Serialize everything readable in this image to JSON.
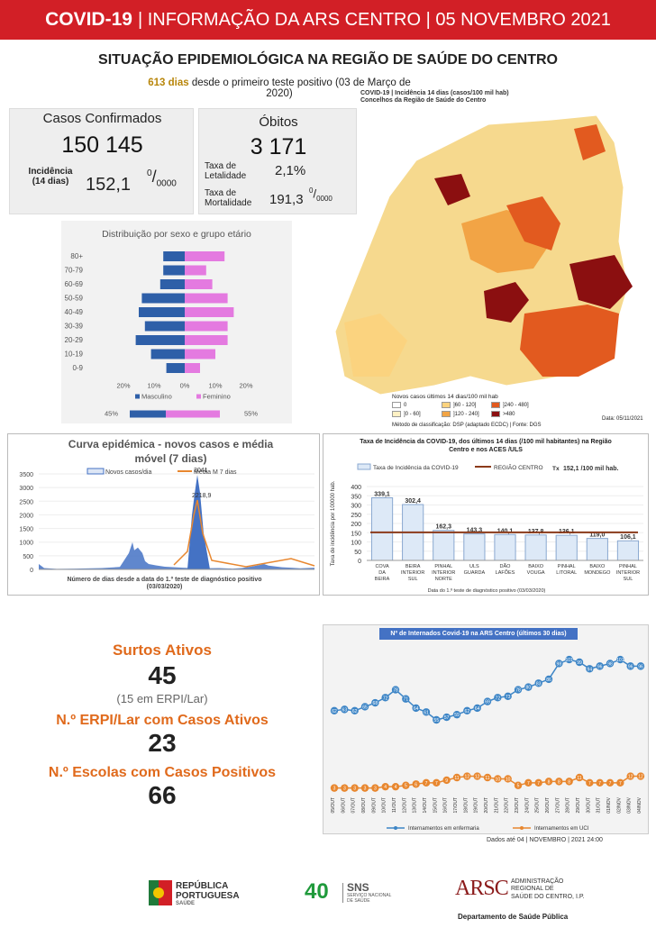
{
  "header": {
    "brand": "COVID-19",
    "rest": "| INFORMAÇÃO DA ARS CENTRO | 05 NOVEMBRO 2021"
  },
  "title": "SITUAÇÃO EPIDEMIOLÓGICA NA REGIÃO DE SAÚDE DO CENTRO",
  "subtitle": {
    "days": "613 dias",
    "text": "desde o primeiro teste positivo (03 de Março de 2020)"
  },
  "casos": {
    "label": "Casos Confirmados",
    "value": "150 145",
    "inc_label": "Incidência",
    "inc_sub": "(14 dias)",
    "inc_value": "152,1",
    "inc_unit": "0/0000"
  },
  "obitos": {
    "label": "Óbitos",
    "value": "3 171",
    "let_label": "Taxa de Letalidade",
    "let_value": "2,1%",
    "mort_label": "Taxa de Mortalidade",
    "mort_value": "191,3",
    "mort_unit": "0/0000"
  },
  "map": {
    "title": "COVID-19 | Incidência 14 dias (casos/100 mil hab)",
    "subtitle": "Concelhos da Região de Saúde do Centro",
    "legend_title": "Novos casos últimos 14 dias/100 mil hab",
    "legend": [
      {
        "label": "0",
        "color": "#ffffff"
      },
      {
        "label": "]0 - 60]",
        "color": "#fff1c4"
      },
      {
        "label": "]60 - 120]",
        "color": "#fbd37f"
      },
      {
        "label": "]120 - 240]",
        "color": "#f2a445"
      },
      {
        "label": "]240 - 480]",
        "color": "#e25a1f"
      },
      {
        "label": ">480",
        "color": "#8b0f10"
      }
    ],
    "source": "Método de classificação: DSP (adaptado ECDC) | Fonte: DGS",
    "date": "Data: 05/11/2021"
  },
  "pyramid": {
    "title": "Distribuição por sexo e grupo etário",
    "groups": [
      "80+",
      "70-79",
      "60-69",
      "50-59",
      "40-49",
      "30-39",
      "20-29",
      "10-19",
      "0-9"
    ],
    "male": [
      7,
      7,
      8,
      14,
      15,
      13,
      16,
      11,
      6
    ],
    "female": [
      13,
      7,
      9,
      14,
      16,
      14,
      14,
      10,
      5
    ],
    "ticks": [
      "20%",
      "10%",
      "0%",
      "10%",
      "20%"
    ],
    "legend_m": "Masculino",
    "legend_f": "Feminino",
    "pct_m": "45%",
    "pct_f": "55%",
    "colors": {
      "male": "#2e5fa8",
      "female": "#e47ae0"
    }
  },
  "curve": {
    "title": "Curva epidémica - novos casos e média móvel (7 dias)",
    "legend_a": "Novos casos/dia",
    "legend_b": "Média M 7 dias",
    "peak": "3041",
    "peak_avg": "2218,9",
    "yticks": [
      "3500",
      "3000",
      "2500",
      "2000",
      "1500",
      "1000",
      "500",
      "0"
    ],
    "xlabel": "Número de dias desde a data do 1.º teste de diagnóstico positivo",
    "xlabel2": "(03/03/2020)"
  },
  "chart_data": [
    {
      "type": "bar",
      "title": "Taxa de Incidência da COVID-19, dos últimos 14 dias (/100 mil habitantes) na Região Centro e nos ACES /ULS",
      "categories": [
        "COVA DA BEIRA",
        "BEIRA INTERIOR SUL",
        "PINHAL INTERIOR NORTE",
        "ULS GUARDA",
        "DÃO LAFÕES",
        "BAIXO VOUGA",
        "PINHAL LITORAL",
        "BAIXO MONDEGO",
        "PINHAL INTERIOR SUL"
      ],
      "values": [
        339.1,
        302.4,
        162.3,
        143.3,
        140.1,
        137.8,
        136.1,
        119.0,
        106.1
      ],
      "labels": [
        "339,1",
        "302,4",
        "162,3",
        "143,3",
        "140,1",
        "137,8",
        "136,1",
        "119,0",
        "106,1"
      ],
      "region_line": 152.1,
      "ylim": [
        0,
        400
      ],
      "yticks": [
        "400",
        "350",
        "300",
        "250",
        "200",
        "150",
        "100",
        "50",
        "0"
      ],
      "ylabel": "Taxa de incidência por 100000 hab.",
      "legend_bar": "Taxa de Incidência da COVID-19",
      "legend_line": "REGIÃO CENTRO",
      "legend_tx": "Tx",
      "legend_tx_val": "152,1 /100 mil hab.",
      "xnote": "Data do 1.º teste de diagnóstico positivo (03/03/2020)"
    },
    {
      "type": "line",
      "title": "Nº de Internados Covid-19 na ARS Centro (últimos 30 dias)",
      "x": [
        "05/OUT",
        "06/OUT",
        "07/OUT",
        "08/OUT",
        "09/OUT",
        "10/OUT",
        "11/OUT",
        "12/OUT",
        "13/OUT",
        "14/OUT",
        "15/OUT",
        "16/OUT",
        "17/OUT",
        "18/OUT",
        "19/OUT",
        "20/OUT",
        "21/OUT",
        "22/OUT",
        "23/OUT",
        "24/OUT",
        "25/OUT",
        "26/OUT",
        "27/OUT",
        "28/OUT",
        "29/OUT",
        "30/OUT",
        "31/OUT",
        "01/NOV",
        "02/NOV",
        "03/NOV",
        "04/NOV"
      ],
      "series": [
        {
          "name": "Internamentos em enfermaria",
          "values": [
            62,
            63,
            62,
            65,
            68,
            72,
            78,
            71,
            64,
            61,
            55,
            57,
            59,
            62,
            64,
            69,
            72,
            73,
            78,
            80,
            83,
            86,
            98,
            101,
            99,
            94,
            96,
            98,
            101,
            96,
            96
          ],
          "color": "#3d85c6"
        },
        {
          "name": "Internamentos em UCI",
          "values": [
            3,
            3,
            3,
            3,
            3,
            4,
            4,
            5,
            6,
            7,
            7,
            9,
            11,
            12,
            12,
            11,
            10,
            10,
            5,
            7,
            7,
            8,
            8,
            8,
            11,
            7,
            7,
            7,
            7,
            12,
            12
          ],
          "color": "#e8872f"
        }
      ],
      "ylim": [
        0,
        110
      ]
    }
  ],
  "surtos": {
    "label": "Surtos Ativos",
    "value": "45",
    "note": "(15 em ERPI/Lar)",
    "erpi_label": "N.º ERPI/Lar com Casos Ativos",
    "erpi_value": "23",
    "esc_label": "N.º Escolas com Casos Positivos",
    "esc_value": "66"
  },
  "footer": {
    "date": "Dados até 04 | NOVEMBRO | 2021 24:00",
    "rep1": "REPÚBLICA",
    "rep2": "PORTUGUESA",
    "rep3": "SAÚDE",
    "sns": "SNS",
    "sns_sub": "SERVIÇO NACIONAL DE SAÚDE",
    "years": "40",
    "ars1": "ADMINISTRAÇÃO",
    "ars2": "REGIONAL DE",
    "ars3": "SAÚDE DO CENTRO, I.P.",
    "dept": "Departamento de Saúde Pública",
    "ars_logo": "ARSC"
  }
}
